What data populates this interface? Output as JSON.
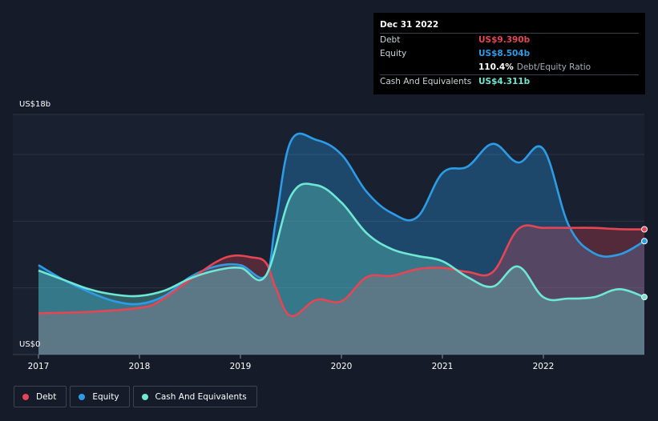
{
  "tooltip": {
    "date": "Dec 31 2022",
    "rows": [
      {
        "label": "Debt",
        "value": "US$9.390b",
        "color": "#e64553"
      },
      {
        "label": "Equity",
        "value": "US$8.504b",
        "color": "#2d9ce6"
      },
      {
        "label": "",
        "value": "110.4%",
        "suffix": "Debt/Equity Ratio",
        "color": "#ffffff"
      },
      {
        "label": "Cash And Equivalents",
        "value": "US$4.311b",
        "color": "#6ee7d4"
      }
    ]
  },
  "legend": [
    {
      "label": "Debt",
      "color": "#e64553"
    },
    {
      "label": "Equity",
      "color": "#2d9ce6"
    },
    {
      "label": "Cash And Equivalents",
      "color": "#6ee7d4"
    }
  ],
  "chart_data": {
    "type": "area",
    "y_top_label": "US$18b",
    "y_bottom_label": "US$0",
    "ylim": [
      0,
      18
    ],
    "xlim": [
      2017.0,
      2023.0
    ],
    "x_ticks": [
      "2017",
      "2018",
      "2019",
      "2020",
      "2021",
      "2022"
    ],
    "x_tick_values": [
      2017,
      2018,
      2019,
      2020,
      2021,
      2022
    ],
    "gridlines": [
      5,
      10,
      15,
      18
    ],
    "series": [
      {
        "name": "Debt",
        "color": "#e64553",
        "points": [
          [
            2017.0,
            3.1
          ],
          [
            2017.5,
            3.2
          ],
          [
            2018.0,
            3.5
          ],
          [
            2018.2,
            4.0
          ],
          [
            2018.5,
            5.6
          ],
          [
            2018.75,
            6.9
          ],
          [
            2018.92,
            7.4
          ],
          [
            2019.1,
            7.3
          ],
          [
            2019.25,
            6.9
          ],
          [
            2019.35,
            5.0
          ],
          [
            2019.5,
            2.9
          ],
          [
            2019.75,
            4.1
          ],
          [
            2020.0,
            4.0
          ],
          [
            2020.25,
            5.8
          ],
          [
            2020.5,
            5.9
          ],
          [
            2020.75,
            6.4
          ],
          [
            2021.0,
            6.5
          ],
          [
            2021.25,
            6.2
          ],
          [
            2021.5,
            6.2
          ],
          [
            2021.75,
            9.4
          ],
          [
            2022.0,
            9.5
          ],
          [
            2022.25,
            9.5
          ],
          [
            2022.5,
            9.5
          ],
          [
            2022.75,
            9.4
          ],
          [
            2023.0,
            9.39
          ]
        ]
      },
      {
        "name": "Equity",
        "color": "#2d9ce6",
        "points": [
          [
            2017.0,
            6.7
          ],
          [
            2017.25,
            5.6
          ],
          [
            2017.5,
            4.7
          ],
          [
            2017.75,
            4.0
          ],
          [
            2018.0,
            3.8
          ],
          [
            2018.25,
            4.4
          ],
          [
            2018.5,
            5.8
          ],
          [
            2018.75,
            6.6
          ],
          [
            2019.0,
            6.7
          ],
          [
            2019.25,
            5.9
          ],
          [
            2019.35,
            10.0
          ],
          [
            2019.5,
            16.0
          ],
          [
            2019.75,
            16.1
          ],
          [
            2020.0,
            15.0
          ],
          [
            2020.25,
            12.2
          ],
          [
            2020.5,
            10.6
          ],
          [
            2020.75,
            10.3
          ],
          [
            2021.0,
            13.6
          ],
          [
            2021.25,
            14.1
          ],
          [
            2021.5,
            15.8
          ],
          [
            2021.75,
            14.4
          ],
          [
            2022.0,
            15.4
          ],
          [
            2022.25,
            9.7
          ],
          [
            2022.5,
            7.6
          ],
          [
            2022.75,
            7.5
          ],
          [
            2023.0,
            8.504
          ]
        ]
      },
      {
        "name": "Cash And Equivalents",
        "color": "#6ee7d4",
        "points": [
          [
            2017.0,
            6.3
          ],
          [
            2017.25,
            5.6
          ],
          [
            2017.5,
            4.9
          ],
          [
            2017.75,
            4.5
          ],
          [
            2018.0,
            4.4
          ],
          [
            2018.25,
            4.8
          ],
          [
            2018.5,
            5.7
          ],
          [
            2018.75,
            6.3
          ],
          [
            2019.0,
            6.5
          ],
          [
            2019.25,
            5.9
          ],
          [
            2019.5,
            11.9
          ],
          [
            2019.75,
            12.7
          ],
          [
            2020.0,
            11.4
          ],
          [
            2020.25,
            9.1
          ],
          [
            2020.5,
            7.9
          ],
          [
            2020.75,
            7.4
          ],
          [
            2021.0,
            7.0
          ],
          [
            2021.25,
            5.8
          ],
          [
            2021.5,
            5.1
          ],
          [
            2021.75,
            6.6
          ],
          [
            2022.0,
            4.3
          ],
          [
            2022.25,
            4.2
          ],
          [
            2022.5,
            4.3
          ],
          [
            2022.75,
            4.9
          ],
          [
            2023.0,
            4.311
          ]
        ]
      }
    ]
  }
}
